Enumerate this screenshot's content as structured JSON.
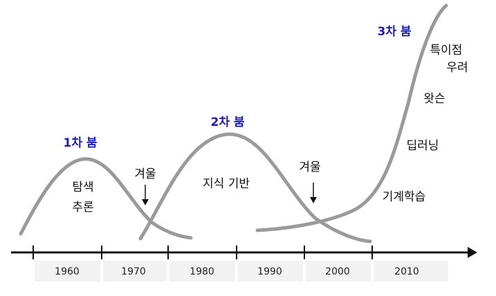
{
  "colors": {
    "boom": "#1a1acc",
    "curve": "#9a9a9a",
    "axis": "#111111",
    "year_box": "#f2f2f2"
  },
  "booms": {
    "first": "1차 붐",
    "second": "2차 붐",
    "third": "3차 붐"
  },
  "winters": {
    "first": "겨울",
    "second": "겨울"
  },
  "eras": {
    "search_line1": "탐색",
    "search_line2": "추론",
    "knowledge": "지식 기반"
  },
  "third_wave": {
    "machine_learning": "기계학습",
    "deep_learning": "딥러닝",
    "watson": "왓슨",
    "singularity_line1": "특이점",
    "singularity_line2": "우려"
  },
  "timeline": {
    "years": [
      "1960",
      "1970",
      "1980",
      "1990",
      "2000",
      "2010"
    ]
  }
}
